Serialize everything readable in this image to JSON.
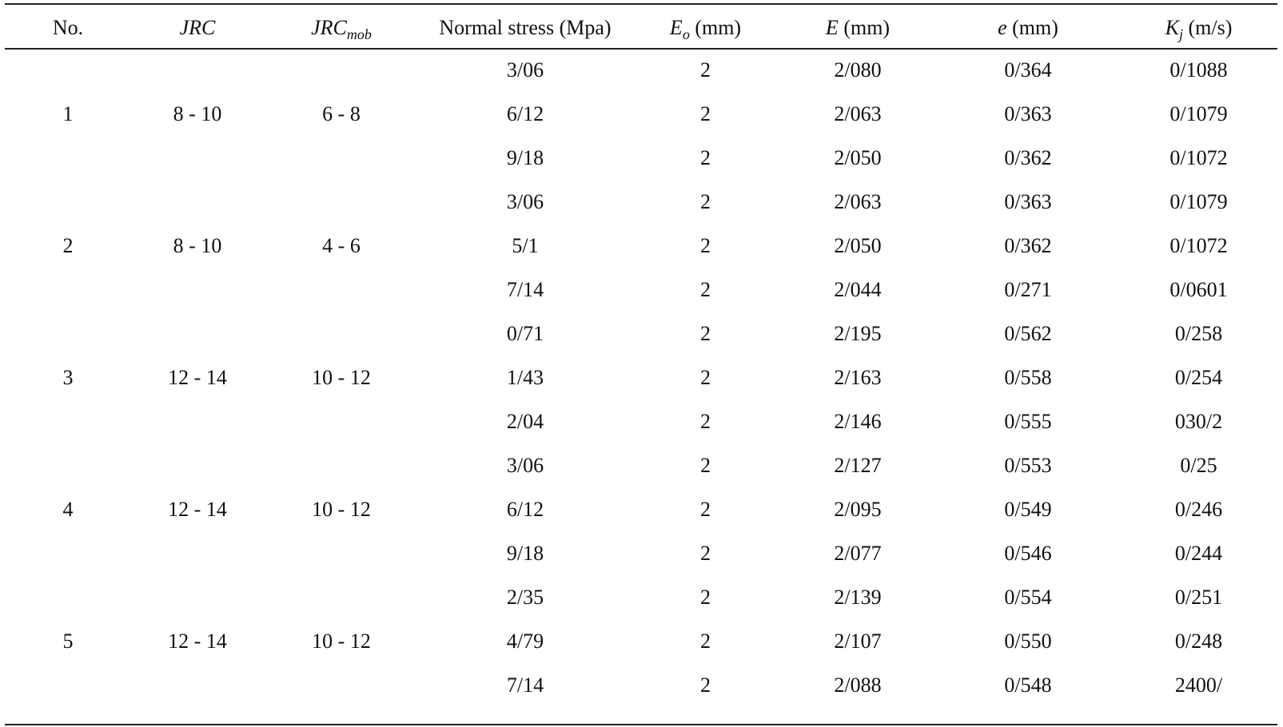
{
  "table": {
    "headers": {
      "no": "No.",
      "jrc": "JRC",
      "jrc_mob_main": "JRC",
      "jrc_mob_sub": "mob",
      "normal_stress": "Normal stress (Mpa)",
      "eo_main": "E",
      "eo_sub": "o",
      "eo_unit": " (mm)",
      "e_main": "E",
      "e_unit": " (mm)",
      "small_e_main": "e",
      "small_e_unit": " (mm)",
      "kj_main": "K",
      "kj_sub": "j",
      "kj_unit": " (m/s)"
    },
    "groups": [
      {
        "no": "1",
        "jrc": "8 - 10",
        "jrc_mob": "6 - 8",
        "rows": [
          {
            "stress": "3/06",
            "eo": "2",
            "E": "2/080",
            "e": "0/364",
            "kj": "0/1088"
          },
          {
            "stress": "6/12",
            "eo": "2",
            "E": "2/063",
            "e": "0/363",
            "kj": "0/1079"
          },
          {
            "stress": "9/18",
            "eo": "2",
            "E": "2/050",
            "e": "0/362",
            "kj": "0/1072"
          }
        ]
      },
      {
        "no": "2",
        "jrc": "8 - 10",
        "jrc_mob": "4 - 6",
        "rows": [
          {
            "stress": "3/06",
            "eo": "2",
            "E": "2/063",
            "e": "0/363",
            "kj": "0/1079"
          },
          {
            "stress": "5/1",
            "eo": "2",
            "E": "2/050",
            "e": "0/362",
            "kj": "0/1072"
          },
          {
            "stress": "7/14",
            "eo": "2",
            "E": "2/044",
            "e": "0/271",
            "kj": "0/0601"
          }
        ]
      },
      {
        "no": "3",
        "jrc": "12 - 14",
        "jrc_mob": "10 - 12",
        "rows": [
          {
            "stress": "0/71",
            "eo": "2",
            "E": "2/195",
            "e": "0/562",
            "kj": "0/258"
          },
          {
            "stress": "1/43",
            "eo": "2",
            "E": "2/163",
            "e": "0/558",
            "kj": "0/254"
          },
          {
            "stress": "2/04",
            "eo": "2",
            "E": "2/146",
            "e": "0/555",
            "kj": "030/2"
          }
        ]
      },
      {
        "no": "4",
        "jrc": "12 - 14",
        "jrc_mob": "10 - 12",
        "rows": [
          {
            "stress": "3/06",
            "eo": "2",
            "E": "2/127",
            "e": "0/553",
            "kj": "0/25"
          },
          {
            "stress": "6/12",
            "eo": "2",
            "E": "2/095",
            "e": "0/549",
            "kj": "0/246"
          },
          {
            "stress": "9/18",
            "eo": "2",
            "E": "2/077",
            "e": "0/546",
            "kj": "0/244"
          }
        ]
      },
      {
        "no": "5",
        "jrc": "12 - 14",
        "jrc_mob": "10 - 12",
        "rows": [
          {
            "stress": "2/35",
            "eo": "2",
            "E": "2/139",
            "e": "0/554",
            "kj": "0/251"
          },
          {
            "stress": "4/79",
            "eo": "2",
            "E": "2/107",
            "e": "0/550",
            "kj": "0/248"
          },
          {
            "stress": "7/14",
            "eo": "2",
            "E": "2/088",
            "e": "0/548",
            "kj": "2400/"
          }
        ]
      }
    ]
  }
}
